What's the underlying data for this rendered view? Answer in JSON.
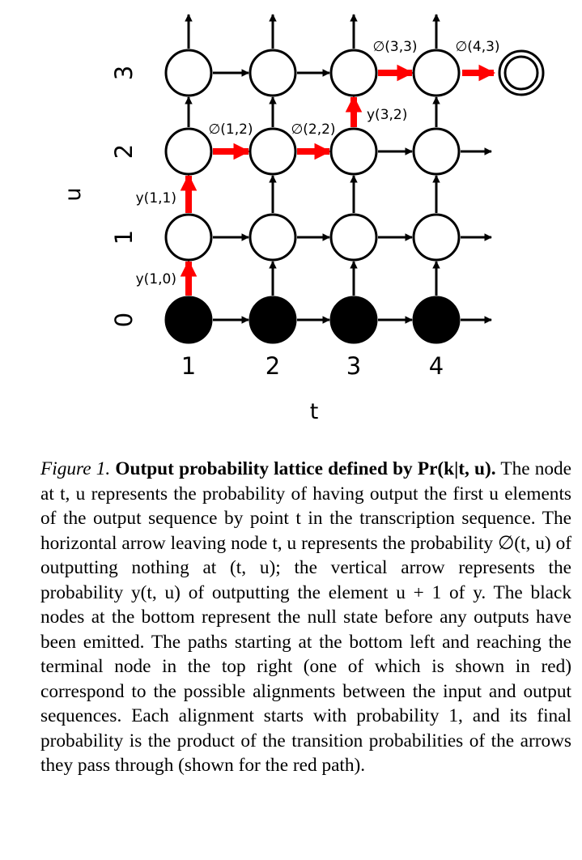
{
  "figure": {
    "axis_t_label": "t",
    "axis_u_label": "u",
    "t_ticks": [
      "1",
      "2",
      "3",
      "4"
    ],
    "u_ticks": [
      "0",
      "1",
      "2",
      "3"
    ],
    "red_path_labels": [
      "y(1,0)",
      "y(1,1)",
      "∅(1,2)",
      "∅(2,2)",
      "y(3,2)",
      "∅(3,3)",
      "∅(4,3)"
    ],
    "colors": {
      "red_path": "#ff0000",
      "arrow": "#000000",
      "null_node": "#000000",
      "node": "#ffffff"
    }
  },
  "caption": {
    "label": "Figure 1.",
    "title": "Output probability lattice defined by Pr(k|t, u).",
    "body": "The node at t, u represents the probability of having output the first u elements of the output sequence by point t in the transcription sequence. The horizontal arrow leaving node t, u represents the probability ∅(t, u) of outputting nothing at (t, u); the vertical arrow represents the probability y(t, u) of outputting the element u + 1 of y. The black nodes at the bottom represent the null state before any outputs have been emitted. The paths starting at the bottom left and reaching the terminal node in the top right (one of which is shown in red) correspond to the possible alignments between the input and output sequences. Each alignment starts with probability 1, and its final probability is the product of the transition probabilities of the arrows they pass through (shown for the red path)."
  }
}
